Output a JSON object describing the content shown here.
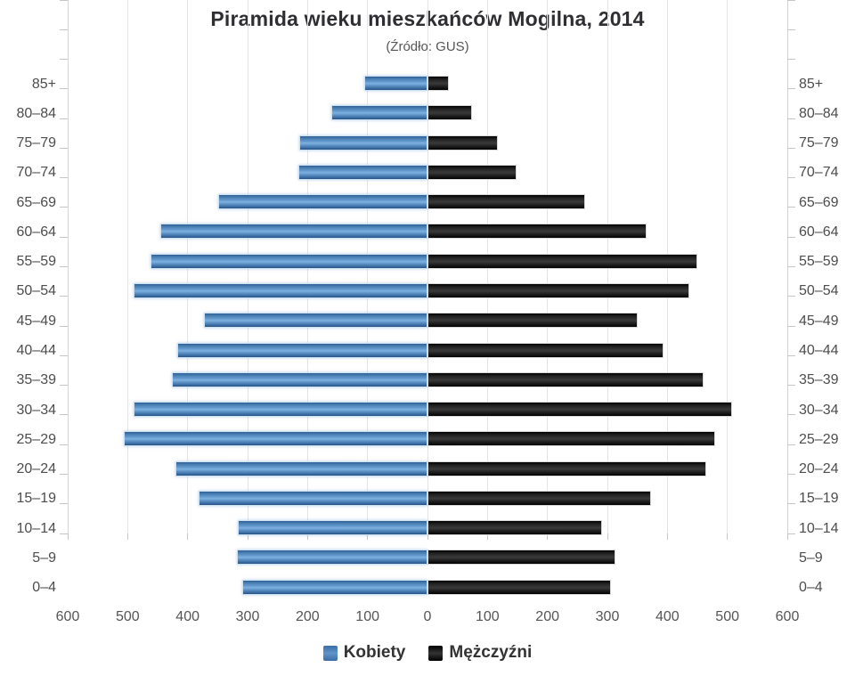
{
  "header": {
    "title": "Piramida wieku mieszkańców Mogilna, 2014",
    "subtitle": "(Źródło: GUS)"
  },
  "legend": {
    "items": [
      {
        "label": "Kobiety",
        "color": "#4f86c2"
      },
      {
        "label": "Mężczyźni",
        "color": "#1c1c1c"
      }
    ],
    "position": "bottom"
  },
  "chart_data": {
    "type": "bar",
    "variant": "population-pyramid",
    "title": "Piramida wieku mieszkańców Mogilna, 2014",
    "subtitle": "(Źródło: GUS)",
    "categories": [
      "85+",
      "80–84",
      "75–79",
      "70–74",
      "65–69",
      "60–64",
      "55–59",
      "50–54",
      "45–49",
      "40–44",
      "35–39",
      "30–34",
      "25–29",
      "20–24",
      "15–19",
      "10–14",
      "5–9",
      "0–4"
    ],
    "series": [
      {
        "name": "Kobiety",
        "side": "left",
        "color": "#4f86c2",
        "values": [
          106,
          160,
          214,
          215,
          349,
          445,
          462,
          490,
          373,
          417,
          427,
          490,
          506,
          421,
          382,
          316,
          318,
          309
        ]
      },
      {
        "name": "Mężczyźni",
        "side": "right",
        "color": "#1c1c1c",
        "values": [
          36,
          74,
          118,
          149,
          263,
          365,
          450,
          437,
          350,
          394,
          461,
          508,
          479,
          465,
          373,
          291,
          313,
          306
        ]
      }
    ],
    "xlabel": "",
    "ylabel": "",
    "axis": {
      "min": -600,
      "max": 600,
      "tick_interval": 100,
      "tick_labels": [
        "600",
        "500",
        "400",
        "300",
        "200",
        "100",
        "0",
        "100",
        "200",
        "300",
        "400",
        "500",
        "600"
      ]
    },
    "grid": true,
    "legend_position": "bottom"
  },
  "colors": {
    "bar_women": "#4f86c2",
    "bar_men": "#1c1c1c",
    "gridline": "#e4e4e4",
    "tick": "#c6c6c6",
    "axis_label": "#555555",
    "category_label": "#4d4d4d",
    "title": "#2e2e33"
  }
}
